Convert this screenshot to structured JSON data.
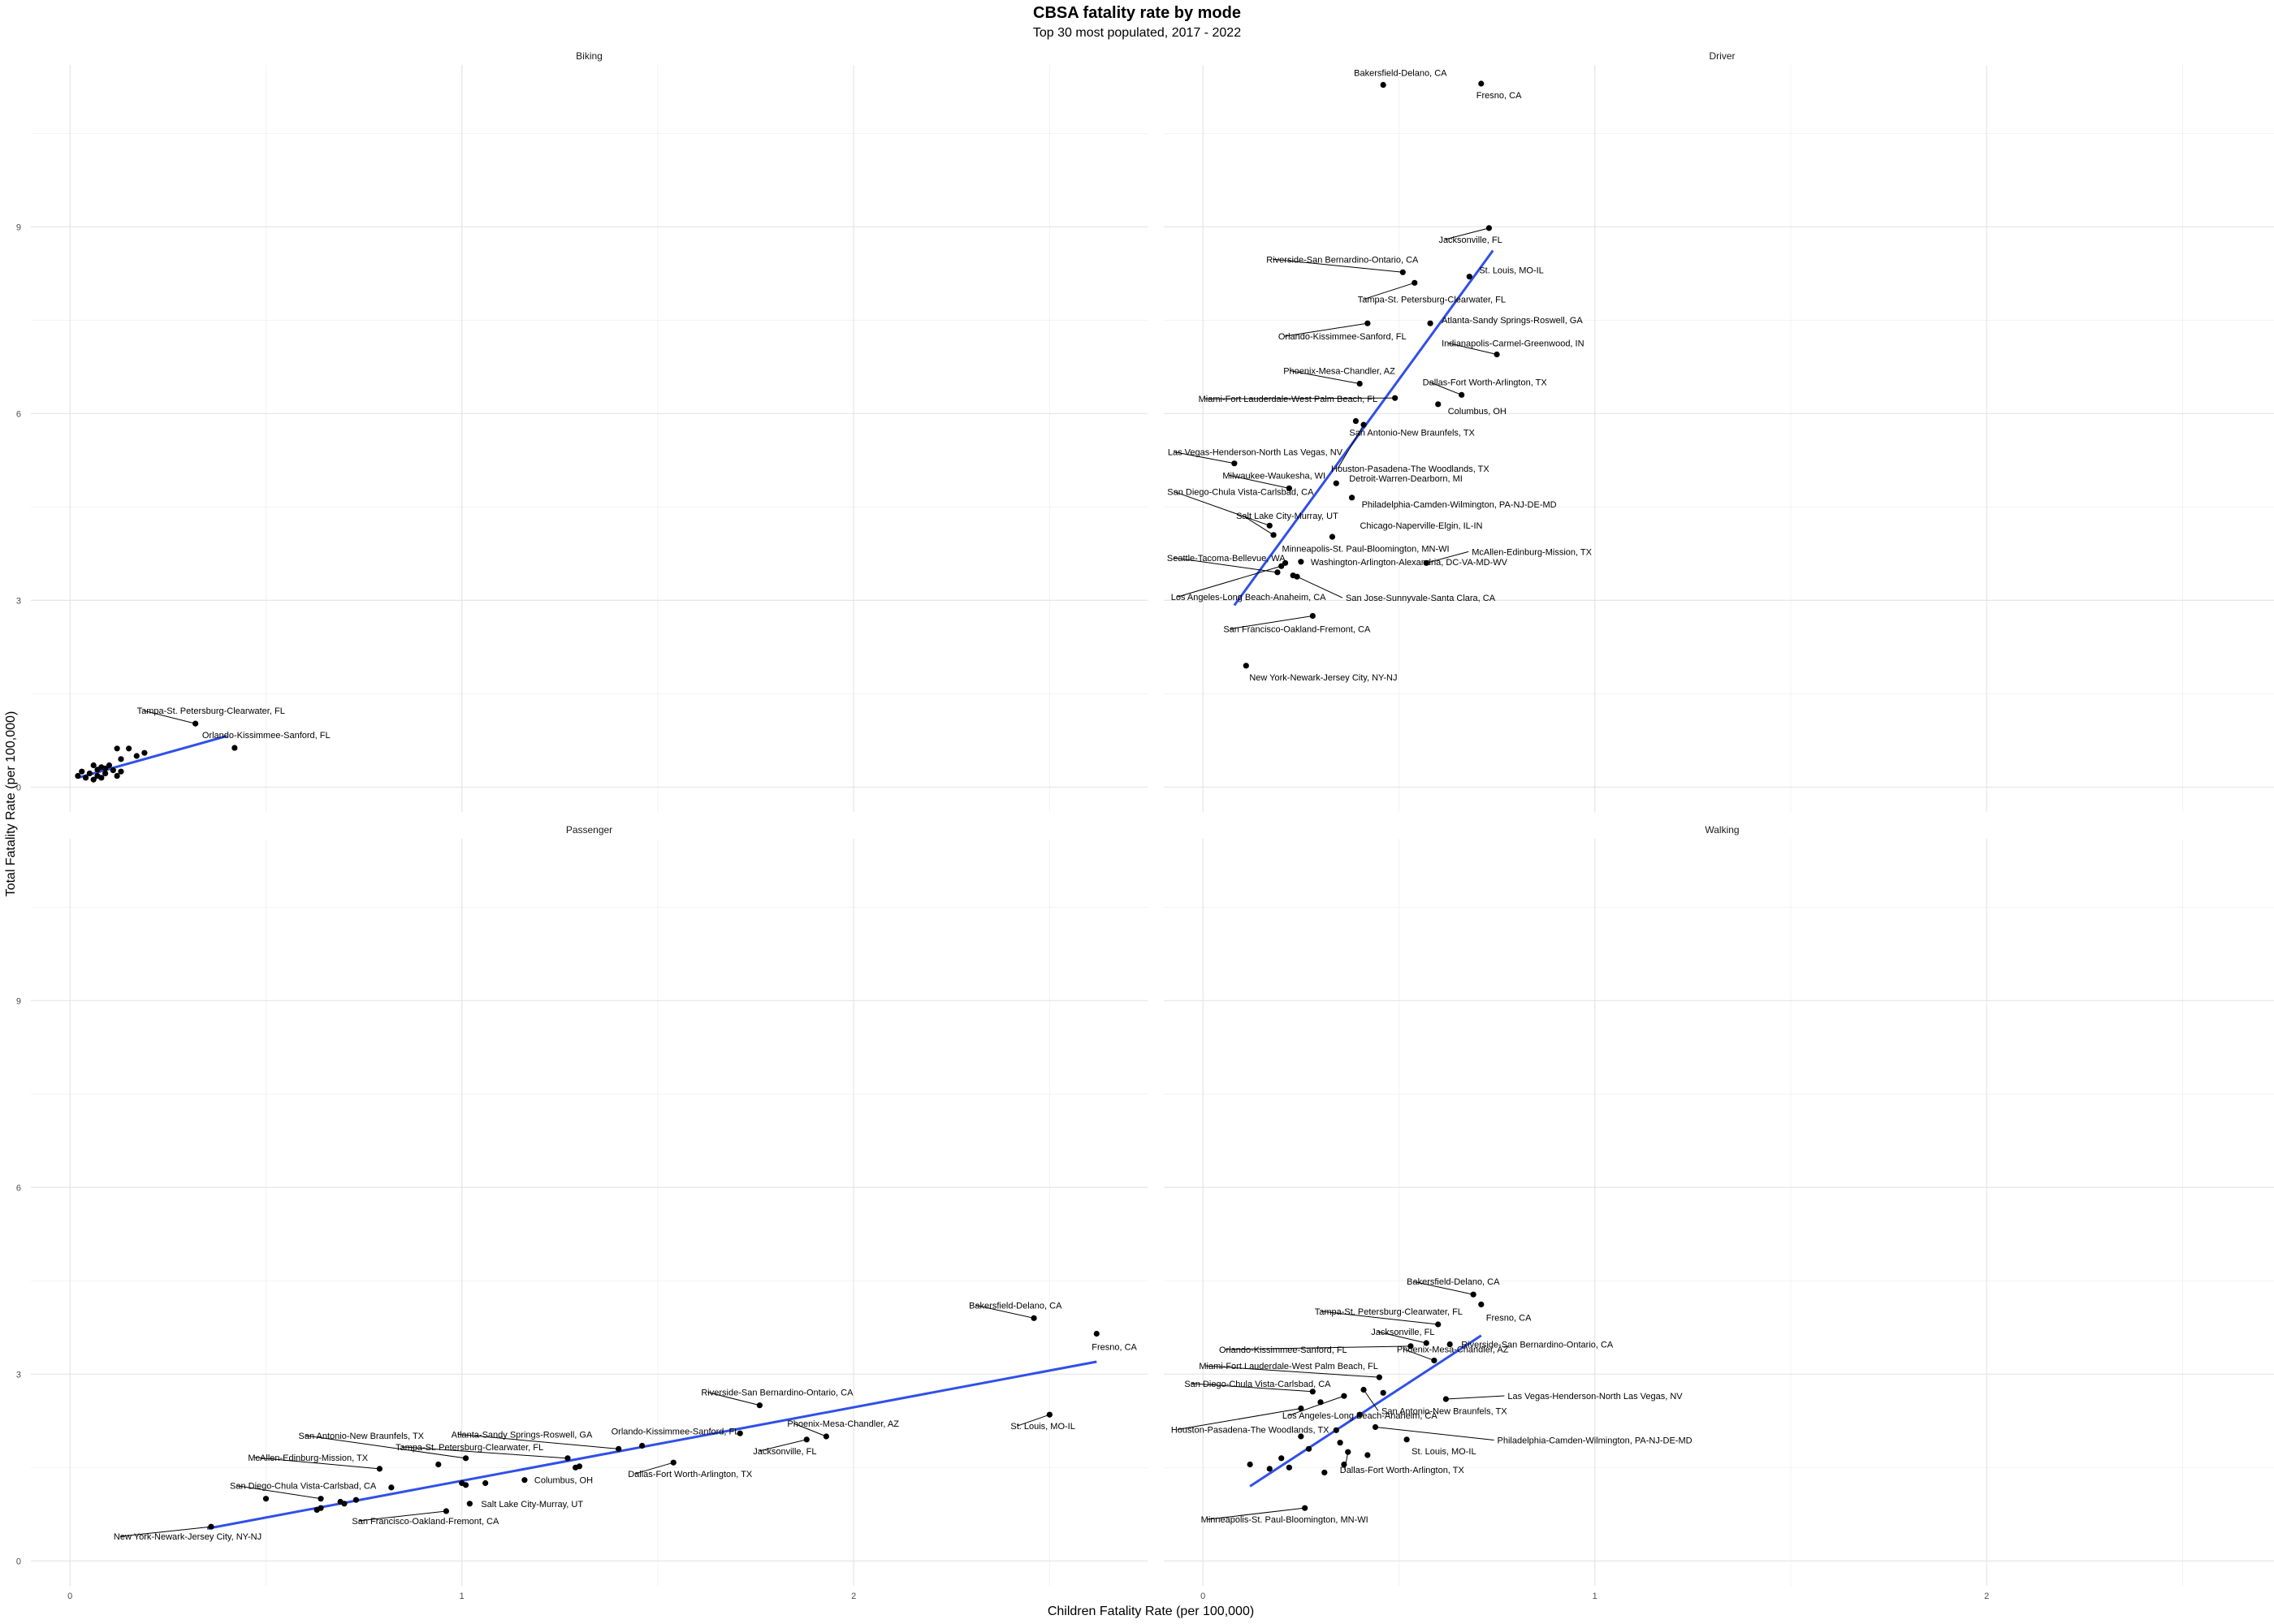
{
  "title": "CBSA fatality rate by mode",
  "subtitle": "Top 30 most populated, 2017 - 2022",
  "xlabel": "Children Fatality Rate (per 100,000)",
  "ylabel": "Total Fatality Rate (per 100,000)",
  "x_ticks": [
    "0",
    "1",
    "2"
  ],
  "y_ticks": [
    "0",
    "3",
    "6",
    "9"
  ],
  "colors": {
    "point": "#000000",
    "fit": "#3050e8",
    "connector": "#000000"
  },
  "chart_data": [
    {
      "type": "scatter",
      "facet": "Biking",
      "xlim": [
        -0.1,
        2.75
      ],
      "ylim": [
        -0.4,
        11.6
      ],
      "grid": true,
      "fit": {
        "x": [
          0.02,
          0.4
        ],
        "y": [
          0.15,
          0.82
        ]
      },
      "points": [
        {
          "label": "Tampa-St. Petersburg-Clearwater, FL",
          "x": 0.32,
          "y": 1.02
        },
        {
          "label": "Orlando-Kissimmee-Sanford, FL",
          "x": 0.42,
          "y": 0.63
        },
        {
          "label": "",
          "x": 0.02,
          "y": 0.18
        },
        {
          "label": "",
          "x": 0.03,
          "y": 0.25
        },
        {
          "label": "",
          "x": 0.04,
          "y": 0.15
        },
        {
          "label": "",
          "x": 0.05,
          "y": 0.22
        },
        {
          "label": "",
          "x": 0.06,
          "y": 0.12
        },
        {
          "label": "",
          "x": 0.06,
          "y": 0.35
        },
        {
          "label": "",
          "x": 0.07,
          "y": 0.18
        },
        {
          "label": "",
          "x": 0.07,
          "y": 0.28
        },
        {
          "label": "",
          "x": 0.08,
          "y": 0.15
        },
        {
          "label": "",
          "x": 0.08,
          "y": 0.32
        },
        {
          "label": "",
          "x": 0.09,
          "y": 0.22
        },
        {
          "label": "",
          "x": 0.09,
          "y": 0.3
        },
        {
          "label": "",
          "x": 0.1,
          "y": 0.35
        },
        {
          "label": "",
          "x": 0.11,
          "y": 0.27
        },
        {
          "label": "",
          "x": 0.12,
          "y": 0.62
        },
        {
          "label": "",
          "x": 0.12,
          "y": 0.18
        },
        {
          "label": "",
          "x": 0.13,
          "y": 0.25
        },
        {
          "label": "",
          "x": 0.13,
          "y": 0.45
        },
        {
          "label": "",
          "x": 0.15,
          "y": 0.62
        },
        {
          "label": "",
          "x": 0.17,
          "y": 0.5
        },
        {
          "label": "",
          "x": 0.19,
          "y": 0.55
        }
      ]
    },
    {
      "type": "scatter",
      "facet": "Driver",
      "xlim": [
        -0.1,
        2.75
      ],
      "ylim": [
        -0.4,
        11.6
      ],
      "grid": true,
      "fit": {
        "x": [
          0.08,
          0.74
        ],
        "y": [
          2.92,
          8.62
        ]
      },
      "points": [
        {
          "label": "Bakersfield-Delano, CA",
          "x": 0.46,
          "y": 11.28
        },
        {
          "label": "Fresno, CA",
          "x": 0.71,
          "y": 11.3
        },
        {
          "label": "Jacksonville, FL",
          "x": 0.73,
          "y": 8.98
        },
        {
          "label": "Riverside-San Bernardino-Ontario, CA",
          "x": 0.51,
          "y": 8.27
        },
        {
          "label": "St. Louis, MO-IL",
          "x": 0.68,
          "y": 8.2
        },
        {
          "label": "Tampa-St. Petersburg-Clearwater, FL",
          "x": 0.54,
          "y": 8.1
        },
        {
          "label": "Atlanta-Sandy Springs-Roswell, GA",
          "x": 0.58,
          "y": 7.45
        },
        {
          "label": "Orlando-Kissimmee-Sanford, FL",
          "x": 0.42,
          "y": 7.45
        },
        {
          "label": "Indianapolis-Carmel-Greenwood, IN",
          "x": 0.75,
          "y": 6.95
        },
        {
          "label": "Phoenix-Mesa-Chandler, AZ",
          "x": 0.4,
          "y": 6.48
        },
        {
          "label": "Dallas-Fort Worth-Arlington, TX",
          "x": 0.66,
          "y": 6.3
        },
        {
          "label": "Miami-Fort Lauderdale-West Palm Beach, FL",
          "x": 0.49,
          "y": 6.25
        },
        {
          "label": "Columbus, OH",
          "x": 0.6,
          "y": 6.15
        },
        {
          "label": "San Antonio-New Braunfels, TX",
          "x": 0.39,
          "y": 5.88
        },
        {
          "label": "Houston-Pasadena-The Woodlands, TX",
          "x": 0.41,
          "y": 5.82
        },
        {
          "label": "Las Vegas-Henderson-North Las Vegas, NV",
          "x": 0.08,
          "y": 5.2
        },
        {
          "label": "Milwaukee-Waukesha, WI",
          "x": 0.22,
          "y": 4.8
        },
        {
          "label": "Detroit-Warren-Dearborn, MI",
          "x": 0.34,
          "y": 4.88
        },
        {
          "label": "San Diego-Chula Vista-Carlsbad, CA",
          "x": 0.17,
          "y": 4.2
        },
        {
          "label": "Philadelphia-Camden-Wilmington, PA-NJ-DE-MD",
          "x": 0.38,
          "y": 4.65
        },
        {
          "label": "Salt Lake City-Murray, UT",
          "x": 0.18,
          "y": 4.05
        },
        {
          "label": "Chicago-Naperville-Elgin, IL-IN",
          "x": 0.33,
          "y": 4.02
        },
        {
          "label": "Minneapolis-St. Paul-Bloomington, MN-WI",
          "x": 0.21,
          "y": 3.6
        },
        {
          "label": "McAllen-Edinburg-Mission, TX",
          "x": 0.57,
          "y": 3.6
        },
        {
          "label": "Seattle-Tacoma-Bellevue, WA",
          "x": 0.19,
          "y": 3.45
        },
        {
          "label": "Washington-Arlington-Alexandria, DC-VA-MD-WV",
          "x": 0.25,
          "y": 3.62
        },
        {
          "label": "",
          "x": 0.23,
          "y": 3.4
        },
        {
          "label": "Los Angeles-Long Beach-Anaheim, CA",
          "x": 0.2,
          "y": 3.55
        },
        {
          "label": "San Jose-Sunnyvale-Santa Clara, CA",
          "x": 0.24,
          "y": 3.38
        },
        {
          "label": "San Francisco-Oakland-Fremont, CA",
          "x": 0.28,
          "y": 2.75
        },
        {
          "label": "New York-Newark-Jersey City, NY-NJ",
          "x": 0.11,
          "y": 1.95
        }
      ]
    },
    {
      "type": "scatter",
      "facet": "Passenger",
      "xlim": [
        -0.1,
        2.75
      ],
      "ylim": [
        -0.4,
        11.6
      ],
      "grid": true,
      "fit": {
        "x": [
          0.35,
          2.62
        ],
        "y": [
          0.52,
          3.2
        ]
      },
      "points": [
        {
          "label": "Bakersfield-Delano, CA",
          "x": 2.46,
          "y": 3.9
        },
        {
          "label": "Fresno, CA",
          "x": 2.62,
          "y": 3.65
        },
        {
          "label": "St. Louis, MO-IL",
          "x": 2.5,
          "y": 2.35
        },
        {
          "label": "Riverside-San Bernardino-Ontario, CA",
          "x": 1.76,
          "y": 2.5
        },
        {
          "label": "Phoenix-Mesa-Chandler, AZ",
          "x": 1.93,
          "y": 2.0
        },
        {
          "label": "Jacksonville, FL",
          "x": 1.88,
          "y": 1.95
        },
        {
          "label": "Orlando-Kissimmee-Sanford, FL",
          "x": 1.46,
          "y": 1.85
        },
        {
          "label": "Atlanta-Sandy Springs-Roswell, GA",
          "x": 1.4,
          "y": 1.8
        },
        {
          "label": "Dallas-Fort Worth-Arlington, TX",
          "x": 1.54,
          "y": 1.58
        },
        {
          "label": "Tampa-St. Petersburg-Clearwater, FL",
          "x": 1.27,
          "y": 1.65
        },
        {
          "label": "San Antonio-New Braunfels, TX",
          "x": 1.01,
          "y": 1.65
        },
        {
          "label": "Columbus, OH",
          "x": 1.16,
          "y": 1.3
        },
        {
          "label": "McAllen-Edinburg-Mission, TX",
          "x": 0.79,
          "y": 1.48
        },
        {
          "label": "Salt Lake City-Murray, UT",
          "x": 1.02,
          "y": 0.92
        },
        {
          "label": "San Diego-Chula Vista-Carlsbad, CA",
          "x": 0.64,
          "y": 1.0
        },
        {
          "label": "San Francisco-Oakland-Fremont, CA",
          "x": 0.96,
          "y": 0.8
        },
        {
          "label": "New York-Newark-Jersey City, NY-NJ",
          "x": 0.36,
          "y": 0.55
        },
        {
          "label": "",
          "x": 0.5,
          "y": 1.0
        },
        {
          "label": "",
          "x": 0.63,
          "y": 0.82
        },
        {
          "label": "",
          "x": 0.64,
          "y": 0.85
        },
        {
          "label": "",
          "x": 0.69,
          "y": 0.95
        },
        {
          "label": "",
          "x": 0.7,
          "y": 0.92
        },
        {
          "label": "",
          "x": 0.73,
          "y": 0.98
        },
        {
          "label": "",
          "x": 0.82,
          "y": 1.18
        },
        {
          "label": "",
          "x": 0.94,
          "y": 1.55
        },
        {
          "label": "",
          "x": 1.0,
          "y": 1.25
        },
        {
          "label": "",
          "x": 1.01,
          "y": 1.22
        },
        {
          "label": "",
          "x": 1.06,
          "y": 1.25
        },
        {
          "label": "",
          "x": 1.3,
          "y": 1.52
        },
        {
          "label": "",
          "x": 1.29,
          "y": 1.5
        },
        {
          "label": "",
          "x": 1.71,
          "y": 2.05
        }
      ]
    },
    {
      "type": "scatter",
      "facet": "Walking",
      "xlim": [
        -0.1,
        2.75
      ],
      "ylim": [
        -0.4,
        11.6
      ],
      "grid": true,
      "fit": {
        "x": [
          0.12,
          0.71
        ],
        "y": [
          1.2,
          3.62
        ]
      },
      "points": [
        {
          "label": "Bakersfield-Delano, CA",
          "x": 0.69,
          "y": 4.28
        },
        {
          "label": "Fresno, CA",
          "x": 0.71,
          "y": 4.12
        },
        {
          "label": "Tampa-St. Petersburg-Clearwater, FL",
          "x": 0.6,
          "y": 3.8
        },
        {
          "label": "Jacksonville, FL",
          "x": 0.57,
          "y": 3.5
        },
        {
          "label": "Riverside-San Bernardino-Ontario, CA",
          "x": 0.63,
          "y": 3.48
        },
        {
          "label": "Orlando-Kissimmee-Sanford, FL",
          "x": 0.53,
          "y": 3.45
        },
        {
          "label": "Phoenix-Mesa-Chandler, AZ",
          "x": 0.59,
          "y": 3.22
        },
        {
          "label": "Miami-Fort Lauderdale-West Palm Beach, FL",
          "x": 0.45,
          "y": 2.95
        },
        {
          "label": "Las Vegas-Henderson-North Las Vegas, NV",
          "x": 0.62,
          "y": 2.6
        },
        {
          "label": "San Diego-Chula Vista-Carlsbad, CA",
          "x": 0.28,
          "y": 2.72
        },
        {
          "label": "San Antonio-New Braunfels, TX",
          "x": 0.41,
          "y": 2.75
        },
        {
          "label": "Los Angeles-Long Beach-Anaheim, CA",
          "x": 0.36,
          "y": 2.65
        },
        {
          "label": "Houston-Pasadena-The Woodlands, TX",
          "x": 0.25,
          "y": 2.45
        },
        {
          "label": "Philadelphia-Camden-Wilmington, PA-NJ-DE-MD",
          "x": 0.44,
          "y": 2.15
        },
        {
          "label": "St. Louis, MO-IL",
          "x": 0.52,
          "y": 1.95
        },
        {
          "label": "Dallas-Fort Worth-Arlington, TX",
          "x": 0.37,
          "y": 1.75
        },
        {
          "label": "Minneapolis-St. Paul-Bloomington, MN-WI",
          "x": 0.26,
          "y": 0.85
        },
        {
          "label": "",
          "x": 0.12,
          "y": 1.55
        },
        {
          "label": "",
          "x": 0.17,
          "y": 1.48
        },
        {
          "label": "",
          "x": 0.2,
          "y": 1.65
        },
        {
          "label": "",
          "x": 0.22,
          "y": 1.5
        },
        {
          "label": "",
          "x": 0.25,
          "y": 2.0
        },
        {
          "label": "",
          "x": 0.27,
          "y": 1.8
        },
        {
          "label": "",
          "x": 0.31,
          "y": 1.42
        },
        {
          "label": "",
          "x": 0.3,
          "y": 2.55
        },
        {
          "label": "",
          "x": 0.35,
          "y": 1.9
        },
        {
          "label": "",
          "x": 0.36,
          "y": 1.55
        },
        {
          "label": "",
          "x": 0.42,
          "y": 1.7
        },
        {
          "label": "",
          "x": 0.46,
          "y": 2.7
        },
        {
          "label": "",
          "x": 0.4,
          "y": 2.35
        },
        {
          "label": "",
          "x": 0.34,
          "y": 2.1
        }
      ]
    }
  ]
}
